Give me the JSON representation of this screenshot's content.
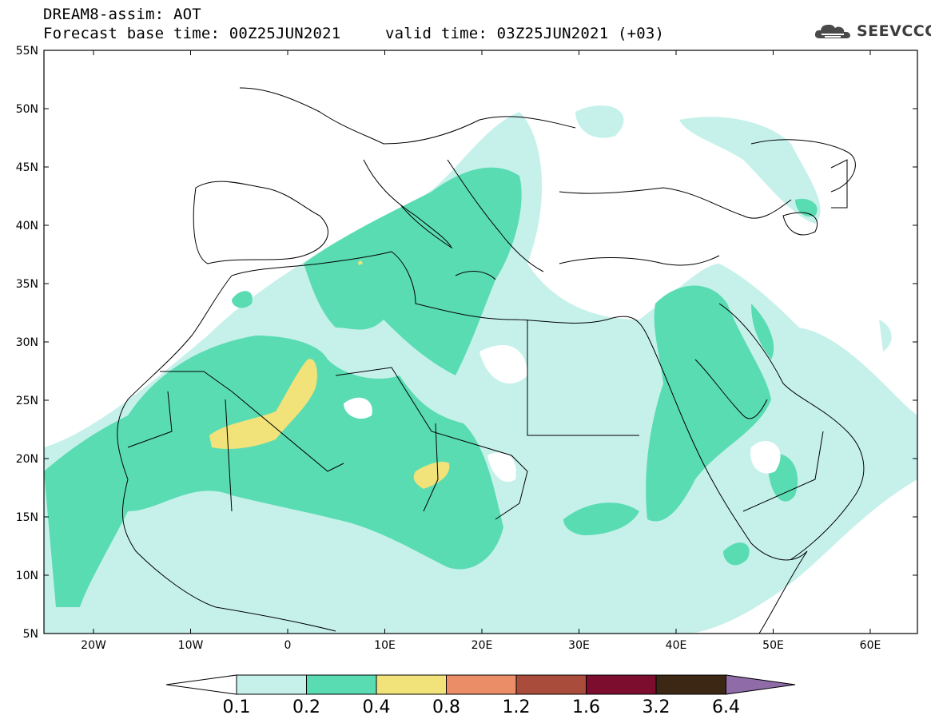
{
  "header": {
    "line1": "DREAM8-assim: AOT",
    "line2": "Forecast base time: 00Z25JUN2021",
    "valid": "valid time: 03Z25JUN2021 (+03)",
    "brand": "SEEVCCC"
  },
  "colors": {
    "c01": "#c6f1eb",
    "c02": "#5adcb2",
    "c04": "#f2e27a",
    "c08": "#eb8d66",
    "c12": "#aa4c3c",
    "c16": "#7c0d2e",
    "c32": "#3c2715",
    "c64": "#8f6ca8"
  },
  "map": {
    "lat_labels": [
      "55N",
      "50N",
      "45N",
      "40N",
      "35N",
      "30N",
      "25N",
      "20N",
      "15N",
      "10N",
      "5N"
    ],
    "lon_labels": [
      "20W",
      "10W",
      "0",
      "10E",
      "20E",
      "30E",
      "40E",
      "50E",
      "60E"
    ]
  },
  "colorbar": {
    "levels": [
      "0.1",
      "0.2",
      "0.4",
      "0.8",
      "1.2",
      "1.6",
      "3.2",
      "6.4"
    ]
  }
}
